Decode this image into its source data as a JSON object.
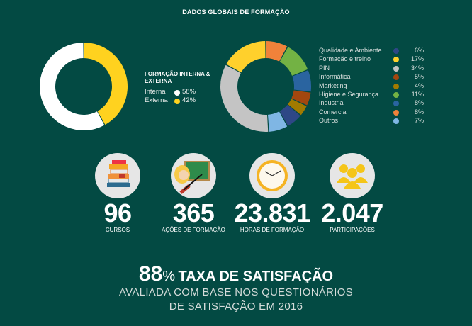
{
  "title": "DADOS GLOBAIS DE FORMAÇÃO",
  "chart_data": [
    {
      "type": "pie",
      "title": "FORMAÇÃO INTERNA & EXTERNA",
      "categories": [
        "Interna",
        "Externa"
      ],
      "values": [
        58,
        42
      ],
      "labels": [
        "58%",
        "42%"
      ],
      "colors": [
        "#ffffff",
        "#ffd21f"
      ],
      "donut": true
    },
    {
      "type": "pie",
      "donut": true,
      "categories": [
        "Qualidade e Ambiente",
        "Formação e treino",
        "PIN",
        "Informática",
        "Marketing",
        "Higiene e Segurança",
        "Industrial",
        "Comercial",
        "Outros"
      ],
      "values": [
        6,
        17,
        34,
        5,
        4,
        11,
        8,
        8,
        7
      ],
      "labels": [
        "6%",
        "17%",
        "34%",
        "5%",
        "4%",
        "11%",
        "8%",
        "8%",
        "7%"
      ],
      "colors": [
        "#2e4786",
        "#ffd02c",
        "#c4c4c4",
        "#a3470f",
        "#a17a00",
        "#73b244",
        "#2a64a0",
        "#f0823a",
        "#7fb6e4"
      ],
      "clockwise_order_from_top": [
        "Comercial",
        "Higiene e Segurança",
        "Industrial",
        "Informática",
        "Marketing",
        "Qualidade e Ambiente",
        "Outros",
        "PIN",
        "Formação e treino"
      ]
    }
  ],
  "stats": [
    {
      "value": "96",
      "label": "CURSOS",
      "icon": "books-icon"
    },
    {
      "value": "365",
      "label": "AÇÕES DE FORMAÇÃO",
      "icon": "teacher-blackboard-icon"
    },
    {
      "value": "23.831",
      "label": "HORAS DE FORMAÇÃO",
      "icon": "clock-icon"
    },
    {
      "value": "2.047",
      "label": "PARTICIPAÇÕES",
      "icon": "people-group-icon"
    }
  ],
  "satisfaction": {
    "value": "88",
    "unit": "%",
    "label": "TAXA DE SATISFAÇÃO",
    "line1": "AVALIADA COM BASE NOS QUESTIONÁRIOS",
    "line2": "DE SATISFAÇÃO EM 2016"
  }
}
